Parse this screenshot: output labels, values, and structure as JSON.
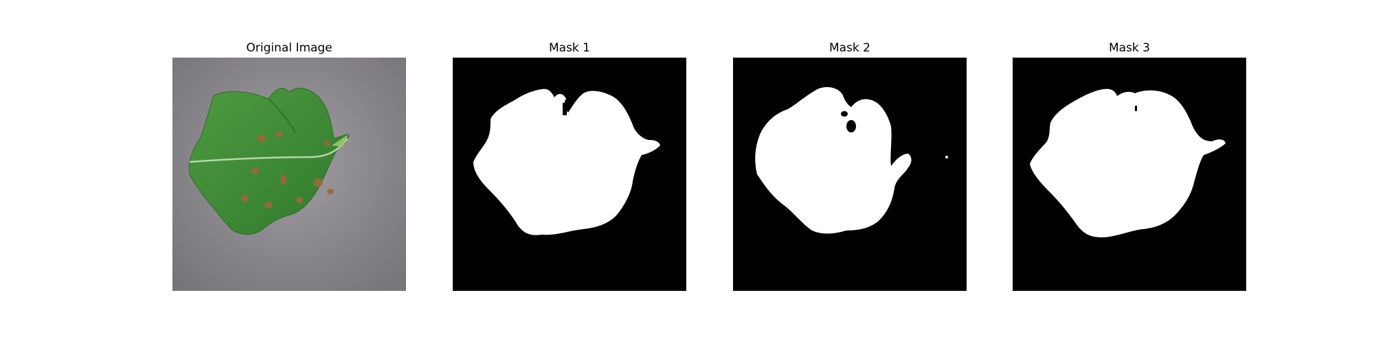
{
  "panels": [
    {
      "title": "Original Image",
      "kind": "photo"
    },
    {
      "title": "Mask 1",
      "kind": "mask"
    },
    {
      "title": "Mask 2",
      "kind": "mask"
    },
    {
      "title": "Mask 3",
      "kind": "mask"
    }
  ],
  "colors": {
    "mask_background": "#000000",
    "mask_foreground": "#ffffff",
    "photo_background": "#8e8b8e",
    "leaf_green": "#3f8a35",
    "lesion_brown": "#9a6a3a"
  }
}
